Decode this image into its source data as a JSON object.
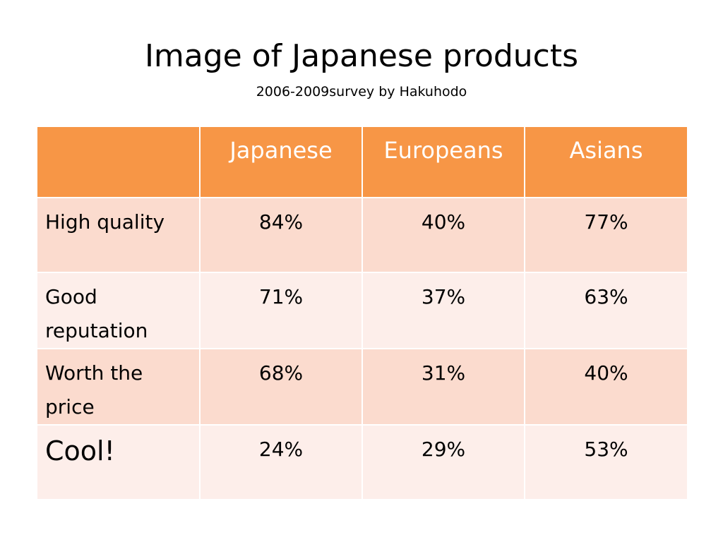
{
  "title": "Image of Japanese products",
  "subtitle": "2006-2009survey by Hakuhodo",
  "colors": {
    "header_fill": "#f79646",
    "row_fill_odd": "#fbdbce",
    "row_fill_even": "#fdeeea",
    "header_text": "#ffffff"
  },
  "table": {
    "columns": [
      "",
      "Japanese",
      "Europeans",
      "Asians"
    ],
    "rows": [
      {
        "label": "High quality",
        "values": [
          "84%",
          "40%",
          "77%"
        ]
      },
      {
        "label": "Good reputation",
        "values": [
          "71%",
          "37%",
          "63%"
        ]
      },
      {
        "label": "Worth the price",
        "values": [
          "68%",
          "31%",
          "40%"
        ]
      },
      {
        "label": "Cool!",
        "values": [
          "24%",
          "29%",
          "53%"
        ]
      }
    ]
  }
}
